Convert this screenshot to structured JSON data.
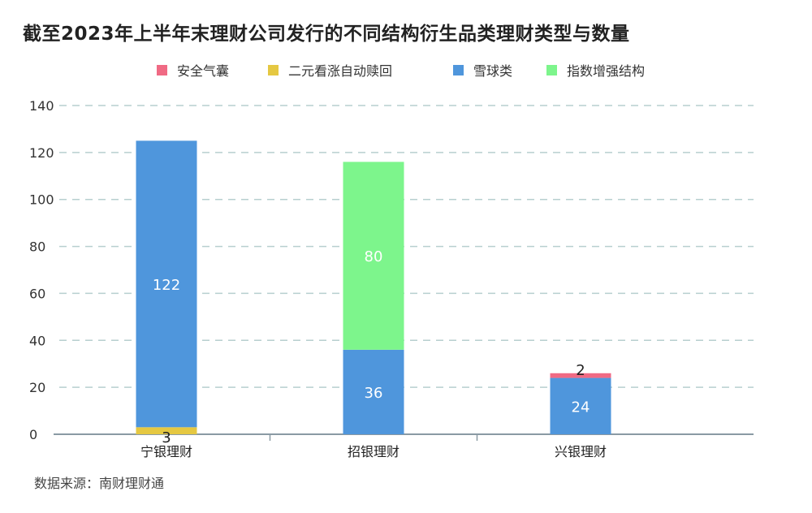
{
  "chart_data": {
    "type": "bar",
    "stacked": true,
    "title": "截至2023年上半年末理财公司发行的不同结构衍生品类理财类型与数量",
    "categories": [
      "宁银理财",
      "招银理财",
      "兴银理财"
    ],
    "series": [
      {
        "name": "安全气囊",
        "color": "#f06a84",
        "values": [
          0,
          0,
          2
        ]
      },
      {
        "name": "二元看涨自动赎回",
        "color": "#e5c842",
        "values": [
          3,
          0,
          0
        ]
      },
      {
        "name": "雪球类",
        "color": "#4f96dc",
        "values": [
          122,
          36,
          24
        ]
      },
      {
        "name": "指数增强结构",
        "color": "#7df58c",
        "values": [
          0,
          80,
          0
        ]
      }
    ],
    "ylim": [
      0,
      140
    ],
    "yticks": [
      0,
      20,
      40,
      60,
      80,
      100,
      120,
      140
    ],
    "grid": true,
    "legend_position": "top",
    "source": "数据来源：南财理财通"
  }
}
